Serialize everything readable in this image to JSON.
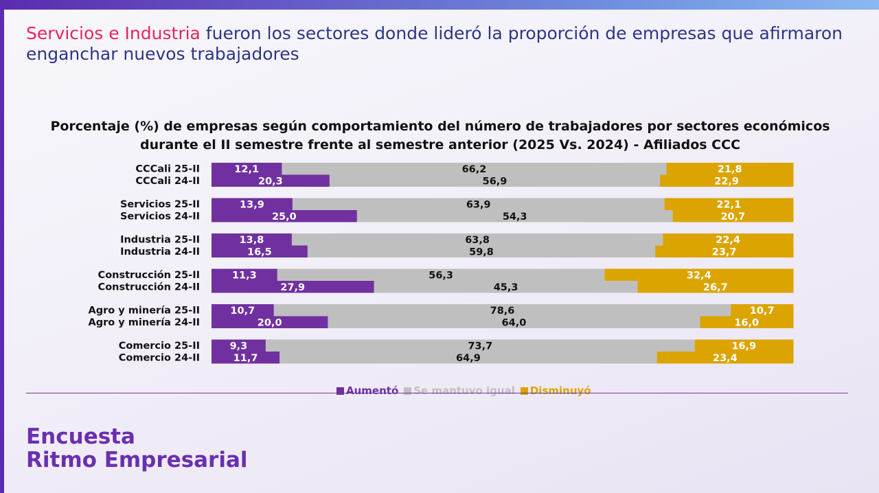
{
  "headline": {
    "highlight": "Servicios e Industria",
    "rest": " fueron los sectores donde lideró la proporción de empresas que afirmaron enganchar nuevos trabajadores"
  },
  "brand": {
    "line1": "Encuesta",
    "line2": "Ritmo Empresarial"
  },
  "colors": {
    "aumento": "#7030a0",
    "igual": "#bfbfbf",
    "disminuyo": "#dba400",
    "highlight": "#e8245a",
    "headline": "#2e3583"
  },
  "chart_data": {
    "type": "bar",
    "stacked": true,
    "orientation": "horizontal",
    "percent_stacked": true,
    "title": "Porcentaje (%) de empresas según comportamiento del número de trabajadores  por sectores económicos durante el II semestre frente al semestre anterior (2025 Vs. 2024) - Afiliados CCC",
    "categories": [
      "CCCali 25-II",
      "CCCali 24-II",
      "Servicios 25-II",
      "Servicios 24-II",
      "Industria 25-II",
      "Industria 24-II",
      "Construcción 25-II",
      "Construcción 24-II",
      "Agro y minería 25-II",
      "Agro y minería 24-II",
      "Comercio 25-II",
      "Comercio 24-II"
    ],
    "series": [
      {
        "name": "Aumentó",
        "color": "#7030a0",
        "values": [
          12.1,
          20.3,
          13.9,
          25.0,
          13.8,
          16.5,
          11.3,
          27.9,
          10.7,
          20.0,
          9.3,
          11.7
        ]
      },
      {
        "name": "Se mantuvo igual",
        "color": "#bfbfbf",
        "values": [
          66.2,
          56.9,
          63.9,
          54.3,
          63.8,
          59.8,
          56.3,
          45.3,
          78.6,
          64.0,
          73.7,
          64.9
        ]
      },
      {
        "name": "Disminuyó",
        "color": "#dba400",
        "values": [
          21.8,
          22.9,
          22.1,
          20.7,
          22.4,
          23.7,
          32.4,
          26.7,
          10.7,
          16.0,
          16.9,
          23.4
        ]
      }
    ],
    "value_labels": {
      "Aumentó": [
        "12,1",
        "20,3",
        "13,9",
        "25,0",
        "13,8",
        "16,5",
        "11,3",
        "27,9",
        "10,7",
        "20,0",
        "9,3",
        "11,7"
      ],
      "Se mantuvo igual": [
        "66,2",
        "56,9",
        "63,9",
        "54,3",
        "63,8",
        "59,8",
        "56,3",
        "45,3",
        "78,6",
        "64,0",
        "73,7",
        "64,9"
      ],
      "Disminuyó": [
        "21,8",
        "22,9",
        "22,1",
        "20,7",
        "22,4",
        "23,7",
        "32,4",
        "26,7",
        "10,7",
        "16,0",
        "16,9",
        "23,4"
      ]
    },
    "legend": "bottom",
    "grid": false,
    "xlim": [
      0,
      100
    ]
  }
}
